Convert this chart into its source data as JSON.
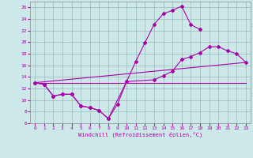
{
  "xlabel": "Windchill (Refroidissement éolien,°C)",
  "xlim": [
    -0.5,
    23.5
  ],
  "ylim": [
    6,
    27
  ],
  "xticks": [
    0,
    1,
    2,
    3,
    4,
    5,
    6,
    7,
    8,
    9,
    10,
    11,
    12,
    13,
    14,
    15,
    16,
    17,
    18,
    19,
    20,
    21,
    22,
    23
  ],
  "yticks": [
    6,
    8,
    10,
    12,
    14,
    16,
    18,
    20,
    22,
    24,
    26
  ],
  "bg_color": "#cce8e8",
  "line_color": "#aa00aa",
  "grid_color": "#99bbbb",
  "line1_x": [
    0,
    1,
    2,
    3,
    4,
    5,
    6,
    7,
    8,
    9,
    10,
    11,
    12,
    13,
    14,
    15,
    16,
    17,
    18
  ],
  "line1_y": [
    13,
    12.7,
    10.7,
    11.0,
    11.0,
    9.0,
    8.7,
    8.2,
    6.8,
    9.3,
    13.2,
    16.7,
    19.9,
    23.1,
    24.9,
    25.5,
    26.2,
    23.0,
    22.2
  ],
  "line2_x": [
    0,
    1,
    2,
    3,
    4,
    5,
    6,
    7,
    8,
    10,
    13,
    14,
    15,
    16,
    17,
    18,
    19,
    20,
    21,
    22,
    23
  ],
  "line2_y": [
    13,
    12.7,
    10.7,
    11.0,
    11.0,
    9.0,
    8.7,
    8.2,
    6.8,
    13.2,
    13.5,
    14.2,
    15.0,
    17.0,
    17.5,
    18.2,
    19.2,
    19.2,
    18.5,
    18.0,
    16.5
  ],
  "line3_x": [
    0,
    23
  ],
  "line3_y": [
    13,
    16.5
  ],
  "line4_x": [
    0,
    23
  ],
  "line4_y": [
    13,
    13.0
  ]
}
